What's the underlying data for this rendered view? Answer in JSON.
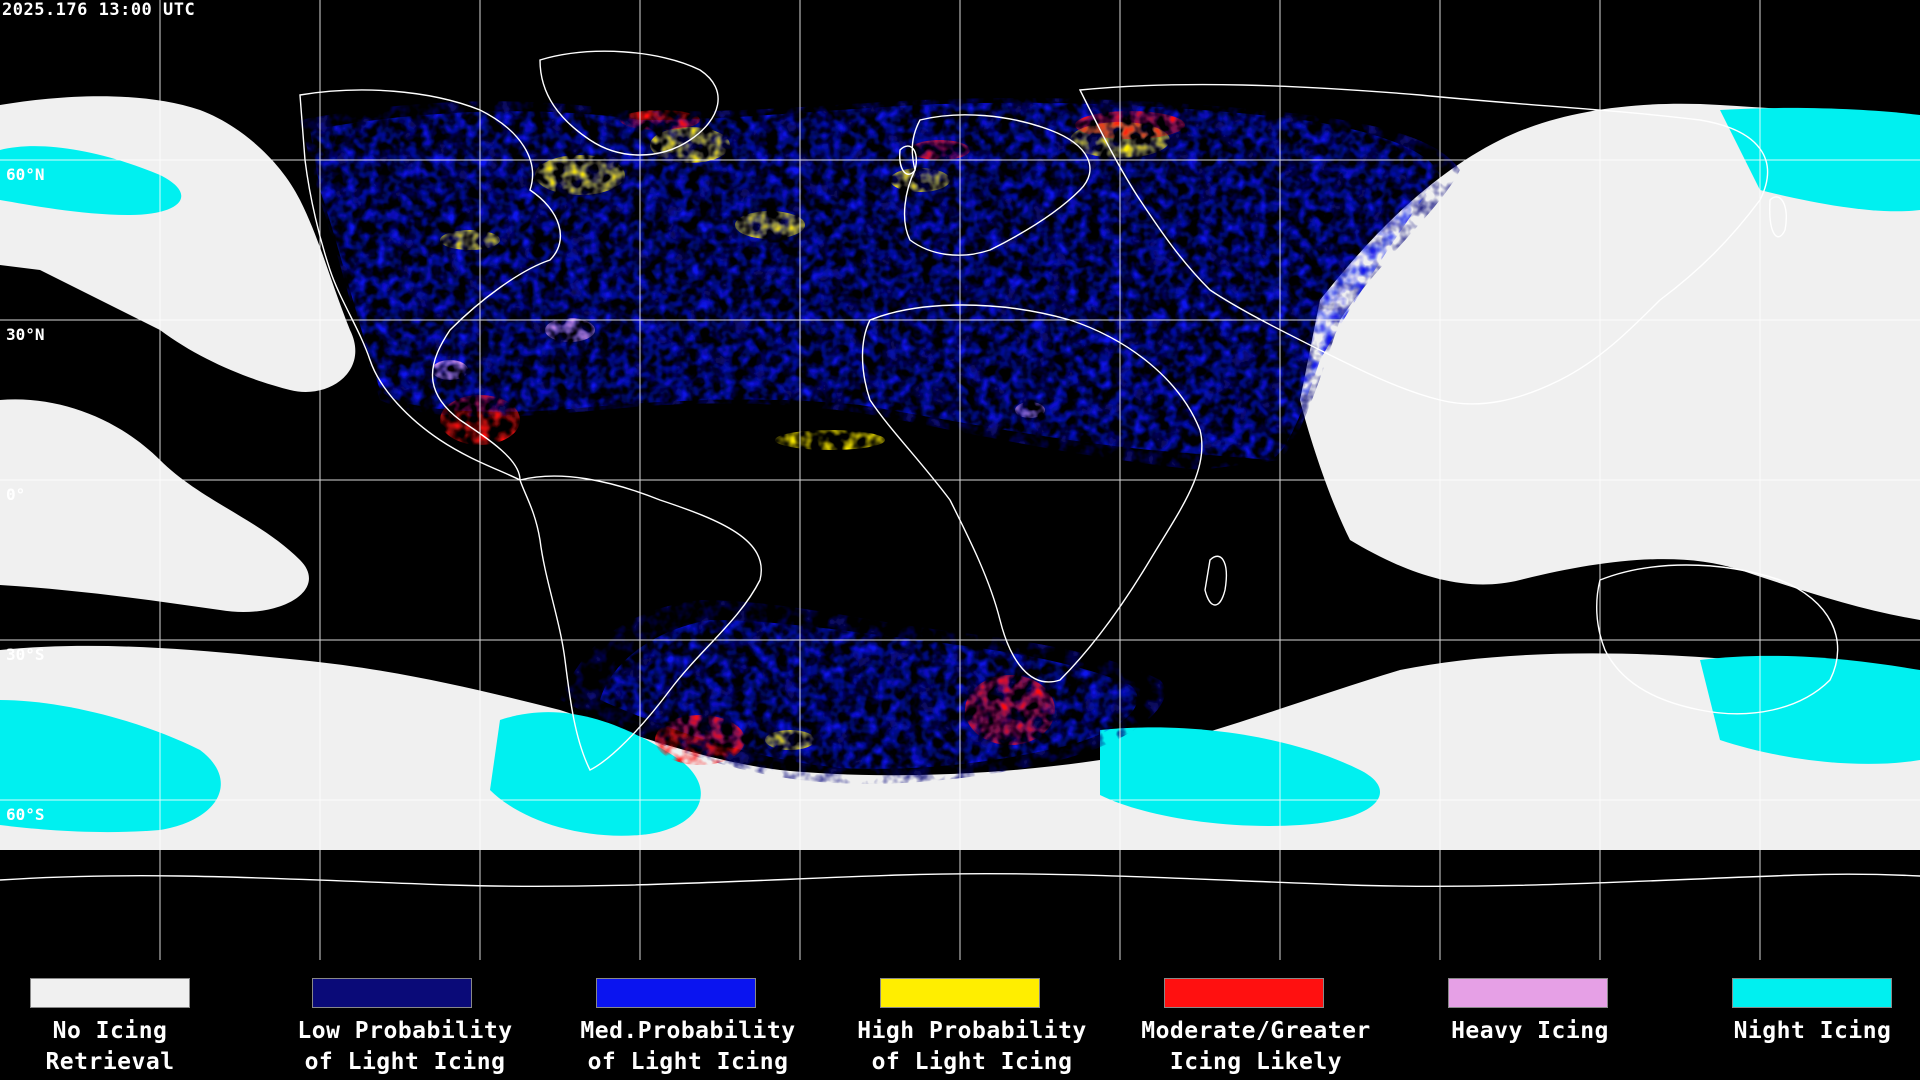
{
  "timestamp": "2025.176 13:00 UTC",
  "lat_labels": {
    "n60": "60°N",
    "n30": "30°N",
    "eq": "0°",
    "s30": "30°S",
    "s60": "60°S"
  },
  "colors": {
    "background": "#000000",
    "grid": "#ffffff",
    "coast": "#ffffff",
    "no_icing": "#f0f0f0",
    "low_prob": "#0a0a78",
    "med_prob": "#0a14f0",
    "high_prob": "#ffee00",
    "moderate": "#ff1010",
    "heavy": "#e6a0e6",
    "night": "#00f0f0"
  },
  "legend": [
    {
      "id": "no-icing",
      "label": "No Icing\nRetrieval",
      "color": "#f0f0f0"
    },
    {
      "id": "low-prob",
      "label": "Low Probability\nof Light Icing",
      "color": "#0a0a78"
    },
    {
      "id": "med-prob",
      "label": "Med.Probability\nof Light Icing",
      "color": "#0a14f0"
    },
    {
      "id": "high-prob",
      "label": "High Probability\nof Light Icing",
      "color": "#ffee00"
    },
    {
      "id": "moderate",
      "label": "Moderate/Greater\nIcing Likely",
      "color": "#ff1010"
    },
    {
      "id": "heavy",
      "label": "Heavy Icing",
      "color": "#e6a0e6"
    },
    {
      "id": "night",
      "label": "Night Icing",
      "color": "#00f0f0"
    }
  ]
}
